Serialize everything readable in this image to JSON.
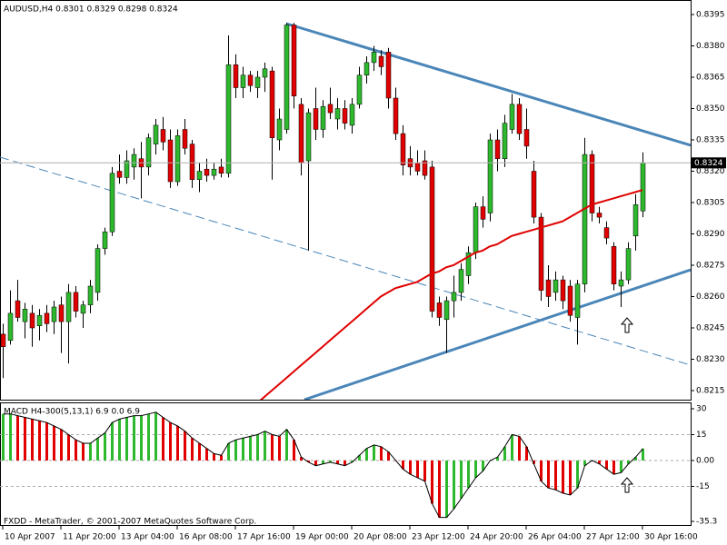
{
  "chart_data": [
    {
      "type": "candlestick",
      "title": "AUDUSD,H4  0.8301 0.8329 0.8298 0.8324",
      "categories": [
        "10 Apr 2007",
        null,
        null,
        null,
        null,
        null,
        null,
        null,
        "11 Apr 20:00",
        null,
        null,
        null,
        null,
        null,
        null,
        null,
        "13 Apr 04:00",
        null,
        null,
        null,
        null,
        null,
        null,
        null,
        "16 Apr 08:00",
        null,
        null,
        null,
        null,
        null,
        null,
        null,
        "17 Apr 16:00",
        null,
        null,
        null,
        null,
        null,
        null,
        null,
        "19 Apr 00:00",
        null,
        null,
        null,
        null,
        null,
        null,
        null,
        "20 Apr 08:00",
        null,
        null,
        null,
        null,
        null,
        null,
        null,
        "23 Apr 12:00",
        null,
        null,
        null,
        null,
        null,
        null,
        null,
        "24 Apr 20:00",
        null,
        null,
        null,
        null,
        null,
        null,
        null,
        "26 Apr 04:00",
        null,
        null,
        null,
        null,
        null,
        null,
        null,
        "27 Apr 12:00",
        null,
        null,
        null,
        null,
        null,
        null,
        null,
        "30 Apr 16:00"
      ],
      "open": [
        0.8242,
        0.8239,
        0.8258,
        0.8248,
        0.8252,
        0.8246,
        0.8252,
        0.8248,
        0.8256,
        0.8248,
        0.8262,
        0.8252,
        0.8256,
        0.8262,
        0.8283,
        0.8291,
        0.832,
        0.8317,
        0.8322,
        0.8326,
        0.8322,
        0.8333,
        0.834,
        0.8335,
        0.8315,
        0.834,
        0.8333,
        0.8316,
        0.8321,
        0.8318,
        0.8322,
        0.8319,
        0.8371,
        0.836,
        0.8366,
        0.836,
        0.8365,
        0.8368,
        0.8335,
        0.834,
        0.839,
        0.8352,
        0.8325,
        0.835,
        0.834,
        0.8352,
        0.8345,
        0.835,
        0.8342,
        0.8352,
        0.8366,
        0.8372,
        0.8375,
        0.8377,
        0.8355,
        0.8338,
        0.8326,
        0.8324,
        0.8325,
        0.8322,
        0.8257,
        0.8249,
        0.8258,
        0.8262,
        0.827,
        0.8281,
        0.8303,
        0.83,
        0.8335,
        0.8326,
        0.834,
        0.8352,
        0.834,
        0.832,
        0.8298,
        0.8268,
        0.8262,
        0.8268,
        0.8265,
        0.825,
        0.8266,
        0.8328,
        0.83,
        0.8293,
        0.8284,
        0.8265,
        0.8268,
        0.8289,
        0.8301
      ],
      "high": [
        0.8247,
        0.8263,
        0.8268,
        0.8257,
        0.8256,
        0.8254,
        0.8256,
        0.8258,
        0.826,
        0.8266,
        0.8265,
        0.8258,
        0.8268,
        0.8285,
        0.8293,
        0.8322,
        0.8328,
        0.833,
        0.8331,
        0.8334,
        0.8338,
        0.8345,
        0.8346,
        0.834,
        0.834,
        0.8345,
        0.8335,
        0.8324,
        0.8326,
        0.8324,
        0.8326,
        0.8385,
        0.8376,
        0.837,
        0.8368,
        0.8368,
        0.8372,
        0.837,
        0.835,
        0.8391,
        0.8391,
        0.8355,
        0.835,
        0.836,
        0.8354,
        0.836,
        0.8355,
        0.8354,
        0.8355,
        0.837,
        0.8375,
        0.838,
        0.8378,
        0.8379,
        0.836,
        0.8342,
        0.8332,
        0.833,
        0.833,
        0.8325,
        0.826,
        0.826,
        0.827,
        0.8276,
        0.8284,
        0.8305,
        0.8308,
        0.8338,
        0.834,
        0.8347,
        0.8357,
        0.8355,
        0.835,
        0.8325,
        0.83,
        0.8275,
        0.8272,
        0.827,
        0.8268,
        0.8268,
        0.8336,
        0.833,
        0.8303,
        0.8296,
        0.8286,
        0.8272,
        0.8286,
        0.8309,
        0.8329
      ],
      "low": [
        0.8221,
        0.8237,
        0.8248,
        0.824,
        0.8236,
        0.8239,
        0.8243,
        0.8242,
        0.8233,
        0.8228,
        0.825,
        0.8245,
        0.8252,
        0.8258,
        0.828,
        0.8289,
        0.8314,
        0.8314,
        0.8316,
        0.8307,
        0.8318,
        0.8328,
        0.833,
        0.8312,
        0.8313,
        0.8328,
        0.8312,
        0.831,
        0.8315,
        0.8316,
        0.8317,
        0.8317,
        0.8355,
        0.8355,
        0.8358,
        0.8355,
        0.8358,
        0.8316,
        0.833,
        0.8338,
        0.835,
        0.8318,
        0.8282,
        0.8335,
        0.8336,
        0.8345,
        0.834,
        0.834,
        0.8338,
        0.835,
        0.8362,
        0.8368,
        0.8366,
        0.835,
        0.8335,
        0.8318,
        0.8318,
        0.8318,
        0.8316,
        0.825,
        0.8246,
        0.8233,
        0.825,
        0.8258,
        0.8266,
        0.8278,
        0.8293,
        0.8296,
        0.832,
        0.8322,
        0.8338,
        0.8335,
        0.8326,
        0.8295,
        0.8258,
        0.8255,
        0.8258,
        0.8254,
        0.8248,
        0.8237,
        0.8262,
        0.8296,
        0.8295,
        0.8285,
        0.8263,
        0.8255,
        0.8266,
        0.8282,
        0.8298
      ],
      "close": [
        0.8236,
        0.8252,
        0.825,
        0.8254,
        0.8245,
        0.8251,
        0.8247,
        0.8255,
        0.8248,
        0.8262,
        0.8253,
        0.8256,
        0.8265,
        0.8283,
        0.8291,
        0.8319,
        0.8317,
        0.8325,
        0.8328,
        0.8322,
        0.8336,
        0.8342,
        0.8334,
        0.8315,
        0.8337,
        0.8331,
        0.8316,
        0.832,
        0.8318,
        0.8321,
        0.8319,
        0.8371,
        0.836,
        0.8366,
        0.8361,
        0.8365,
        0.8369,
        0.8336,
        0.8345,
        0.839,
        0.8356,
        0.8324,
        0.8348,
        0.834,
        0.8351,
        0.8348,
        0.835,
        0.8343,
        0.8352,
        0.8366,
        0.8372,
        0.8377,
        0.837,
        0.8355,
        0.8338,
        0.8323,
        0.8322,
        0.832,
        0.8318,
        0.8253,
        0.825,
        0.8258,
        0.8262,
        0.8273,
        0.8281,
        0.8303,
        0.8297,
        0.8335,
        0.8326,
        0.8343,
        0.8352,
        0.8338,
        0.8332,
        0.8298,
        0.8263,
        0.826,
        0.8268,
        0.8258,
        0.8251,
        0.8266,
        0.8328,
        0.83,
        0.8298,
        0.8288,
        0.8266,
        0.8268,
        0.8283,
        0.8304,
        0.8324
      ],
      "moving_average": {
        "color": "#e00000",
        "values": [
          null,
          null,
          null,
          null,
          null,
          null,
          null,
          null,
          null,
          null,
          null,
          null,
          null,
          null,
          null,
          null,
          null,
          null,
          null,
          null,
          null,
          null,
          null,
          null,
          null,
          null,
          null,
          null,
          null,
          null,
          null,
          null,
          null,
          null,
          0.8206,
          0.8209,
          0.8212,
          0.8215,
          0.8218,
          0.8221,
          0.8224,
          0.8227,
          0.823,
          0.8233,
          0.8236,
          0.8239,
          0.8242,
          0.8245,
          0.8248,
          0.8251,
          0.8254,
          0.8257,
          0.826,
          0.8262,
          0.8264,
          0.8265,
          0.8266,
          0.8267,
          0.8269,
          0.8271,
          0.8272,
          0.8274,
          0.8275,
          0.8277,
          0.8279,
          0.8281,
          0.8282,
          0.8284,
          0.8285,
          0.8287,
          0.8289,
          0.829,
          0.8291,
          0.8292,
          0.8293,
          0.8294,
          0.8295,
          0.8296,
          0.8298,
          0.83,
          0.8302,
          0.8304,
          0.8305,
          0.8306,
          0.8307,
          0.8308,
          0.8309,
          0.831,
          0.8311
        ]
      },
      "up_color": "#2eb82e",
      "down_color": "#e00000",
      "last_price": 0.8324,
      "ylim": [
        0.8215,
        0.8395
      ],
      "yticks": [
        0.8395,
        {
          "value": 0.838,
          "label": "0.8380"
        },
        0.8365,
        {
          "value": 0.835,
          "label": "0.8350"
        },
        0.8335,
        {
          "value": 0.832,
          "label": "0.8320"
        },
        0.8305,
        {
          "value": 0.829,
          "label": "0.8290"
        },
        0.8275,
        {
          "value": 0.826,
          "label": "0.8260"
        },
        0.8245,
        {
          "value": 0.823,
          "label": "0.8230"
        },
        0.8215
      ]
    },
    {
      "type": "bar",
      "title": "MACD H4-300(5,13,1) 6.9 0.0 6.9",
      "values": [
        27,
        27,
        26,
        25,
        24,
        23,
        22,
        20,
        18,
        15,
        12,
        10,
        10,
        13,
        16,
        22,
        24,
        25,
        26,
        26,
        27,
        28,
        25,
        22,
        20,
        17,
        13,
        10,
        7,
        4,
        3,
        10,
        12,
        13,
        14,
        15,
        17,
        15,
        14,
        18,
        12,
        2,
        -1,
        -3,
        -2,
        -1,
        -2,
        -3,
        -1,
        3,
        7,
        9,
        8,
        5,
        0,
        -5,
        -8,
        -10,
        -12,
        -25,
        -33,
        -33,
        -28,
        -22,
        -16,
        -10,
        -6,
        0,
        2,
        8,
        15,
        14,
        8,
        -2,
        -12,
        -16,
        -17,
        -19,
        -20,
        -16,
        -3,
        0,
        -2,
        -5,
        -8,
        -7,
        -2,
        2,
        6.9
      ],
      "up_color": "#2eb82e",
      "down_color": "#e00000",
      "ylim": [
        -35.3,
        30
      ],
      "yticks": [
        30,
        15,
        {
          "value": 0,
          "label": "0.00"
        },
        -15,
        -35.3
      ],
      "grid": true
    }
  ],
  "footer": "FXDD - MetaTrader, © 2001-2007 MetaQuotes Software Corp."
}
